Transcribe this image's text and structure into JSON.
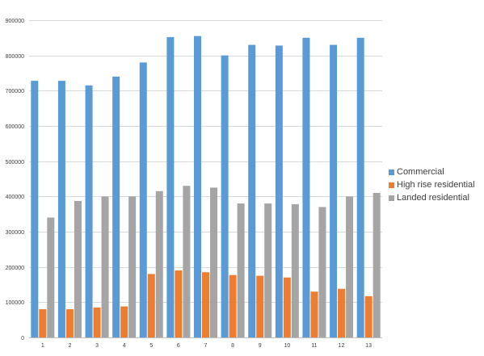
{
  "chart_data": {
    "type": "bar",
    "categories": [
      "1",
      "2",
      "3",
      "4",
      "5",
      "6",
      "7",
      "8",
      "9",
      "10",
      "11",
      "12",
      "13"
    ],
    "series": [
      {
        "name": "Commercial",
        "color": "#5B9BD5",
        "values": [
          728000,
          728000,
          715000,
          740000,
          780000,
          852000,
          855000,
          800000,
          830000,
          828000,
          850000,
          830000,
          850000
        ]
      },
      {
        "name": "High rise residential",
        "color": "#ED7D31",
        "values": [
          80000,
          80000,
          85000,
          88000,
          180000,
          190000,
          185000,
          177000,
          175000,
          170000,
          130000,
          138000,
          117000
        ]
      },
      {
        "name": "Landed residential",
        "color": "#A5A5A5",
        "values": [
          340000,
          387000,
          400000,
          400000,
          415000,
          430000,
          425000,
          380000,
          380000,
          378000,
          370000,
          400000,
          410000
        ]
      }
    ],
    "ylim": [
      0,
      900000
    ],
    "yticks": [
      "0",
      "100000",
      "200000",
      "300000",
      "400000",
      "500000",
      "600000",
      "700000",
      "800000",
      "900000"
    ],
    "grid": true,
    "legend_position": "right"
  }
}
